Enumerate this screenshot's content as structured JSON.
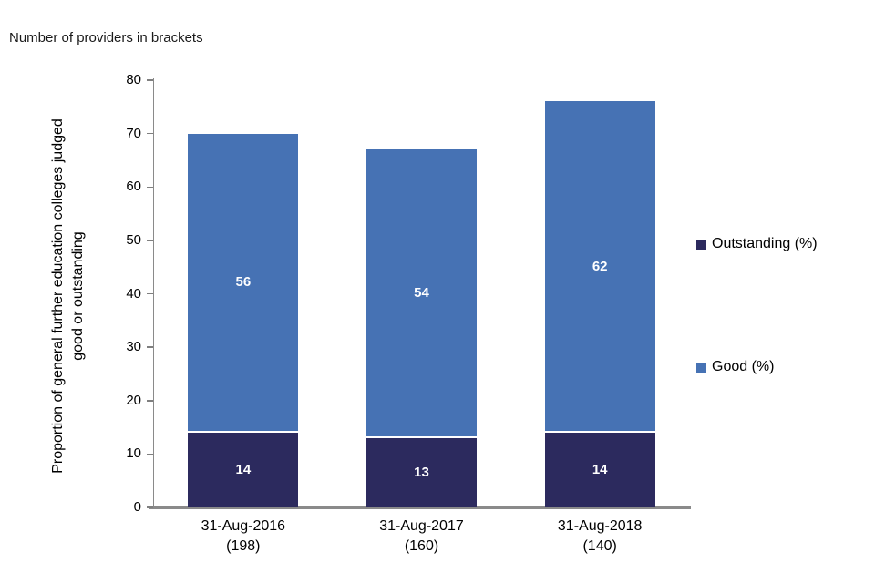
{
  "note": "Number of providers in brackets",
  "chart_data": {
    "type": "bar",
    "stacked": true,
    "title": "",
    "categories": [
      "31-Aug-2016",
      "31-Aug-2017",
      "31-Aug-2018"
    ],
    "category_brackets": [
      "(198)",
      "(160)",
      "(140)"
    ],
    "series": [
      {
        "name": "Outstanding (%)",
        "color": "#2C2A5E",
        "values": [
          14,
          13,
          14
        ]
      },
      {
        "name": "Good (%)",
        "color": "#4672B4",
        "values": [
          56,
          54,
          62
        ]
      }
    ],
    "value_label_color": "#FFFFFF",
    "xlabel": "",
    "ylabel": "Proportion of general further education colleges judged good or outstanding",
    "ylabel_lines": [
      "Proportion of general further education colleges judged",
      "good or outstanding"
    ],
    "ylim": [
      0,
      80
    ],
    "ytick_interval": 10,
    "yticks": [
      0,
      10,
      20,
      30,
      40,
      50,
      60,
      70,
      80
    ],
    "grid": false,
    "legend_position": "right",
    "axis_color": "#8A8A8A"
  }
}
